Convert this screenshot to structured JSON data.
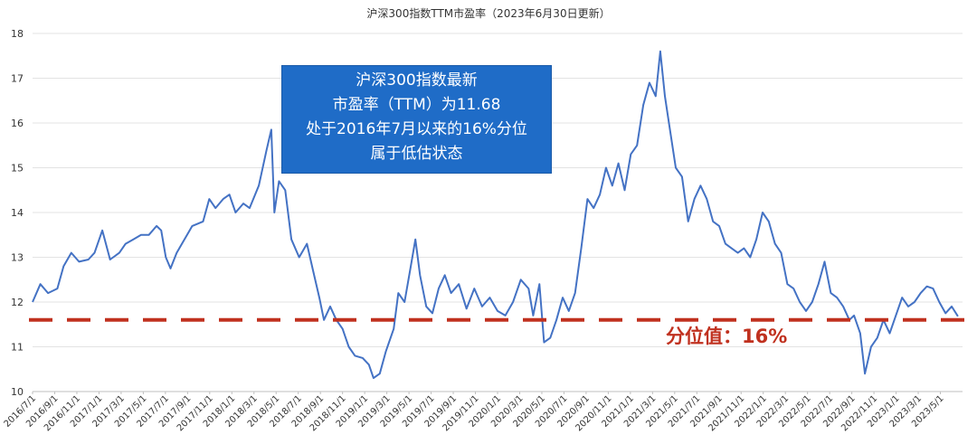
{
  "chart_data": {
    "type": "line",
    "title": "沪深300指数TTM市盈率（2023年6月30日更新）",
    "xlabel": "",
    "ylabel": "",
    "ylim": [
      10,
      18
    ],
    "yticks": [
      "10",
      "11",
      "12",
      "13",
      "14",
      "15",
      "16",
      "17",
      "18"
    ],
    "xtick_labels": [
      "2016/7/1",
      "2016/9/1",
      "2016/11/1",
      "2017/1/1",
      "2017/3/1",
      "2017/5/1",
      "2017/7/1",
      "2017/9/1",
      "2017/11/1",
      "2018/1/1",
      "2018/3/1",
      "2018/5/1",
      "2018/7/1",
      "2018/9/1",
      "2018/11/1",
      "2019/1/1",
      "2019/3/1",
      "2019/5/1",
      "2019/7/1",
      "2019/9/1",
      "2019/11/1",
      "2020/1/1",
      "2020/3/1",
      "2020/5/1",
      "2020/7/1",
      "2020/9/1",
      "2020/11/1",
      "2021/1/1",
      "2021/3/1",
      "2021/5/1",
      "2021/7/1",
      "2021/9/1",
      "2021/11/1",
      "2022/1/1",
      "2022/3/1",
      "2022/5/1",
      "2022/7/1",
      "2022/9/1",
      "2022/11/1",
      "2023/1/1",
      "2023/3/1",
      "2023/5/1"
    ],
    "grid": true,
    "series": [
      {
        "name": "",
        "color": "#4472c4",
        "points": [
          [
            0,
            12.0
          ],
          [
            0.5,
            12.4
          ],
          [
            1,
            12.2
          ],
          [
            1.6,
            12.3
          ],
          [
            2,
            12.8
          ],
          [
            2.5,
            13.1
          ],
          [
            3,
            12.9
          ],
          [
            3.6,
            12.95
          ],
          [
            4,
            13.1
          ],
          [
            4.5,
            13.6
          ],
          [
            5,
            12.95
          ],
          [
            5.6,
            13.1
          ],
          [
            6,
            13.3
          ],
          [
            6.5,
            13.4
          ],
          [
            7,
            13.5
          ],
          [
            7.5,
            13.5
          ],
          [
            8,
            13.7
          ],
          [
            8.3,
            13.6
          ],
          [
            8.6,
            13.0
          ],
          [
            8.9,
            12.75
          ],
          [
            9.3,
            13.1
          ],
          [
            9.8,
            13.4
          ],
          [
            10.3,
            13.7
          ],
          [
            11,
            13.8
          ],
          [
            11.4,
            14.3
          ],
          [
            11.8,
            14.1
          ],
          [
            12.3,
            14.3
          ],
          [
            12.7,
            14.4
          ],
          [
            13.1,
            14.0
          ],
          [
            13.6,
            14.2
          ],
          [
            14,
            14.1
          ],
          [
            14.6,
            14.6
          ],
          [
            15.1,
            15.4
          ],
          [
            15.4,
            15.85
          ],
          [
            15.6,
            14.0
          ],
          [
            15.9,
            14.7
          ],
          [
            16.3,
            14.5
          ],
          [
            16.7,
            13.4
          ],
          [
            17.2,
            13.0
          ],
          [
            17.7,
            13.3
          ],
          [
            18.1,
            12.7
          ],
          [
            18.5,
            12.1
          ],
          [
            18.8,
            11.6
          ],
          [
            19.2,
            11.9
          ],
          [
            19.6,
            11.6
          ],
          [
            20,
            11.4
          ],
          [
            20.4,
            11.0
          ],
          [
            20.8,
            10.8
          ],
          [
            21.3,
            10.75
          ],
          [
            21.7,
            10.6
          ],
          [
            22,
            10.3
          ],
          [
            22.4,
            10.4
          ],
          [
            22.8,
            10.9
          ],
          [
            23.3,
            11.4
          ],
          [
            23.6,
            12.2
          ],
          [
            24.0,
            12.0
          ],
          [
            24.4,
            12.8
          ],
          [
            24.7,
            13.4
          ],
          [
            25.0,
            12.6
          ],
          [
            25.4,
            11.9
          ],
          [
            25.8,
            11.75
          ],
          [
            26.2,
            12.3
          ],
          [
            26.6,
            12.6
          ],
          [
            27.0,
            12.2
          ],
          [
            27.5,
            12.4
          ],
          [
            28.0,
            11.85
          ],
          [
            28.5,
            12.3
          ],
          [
            29.0,
            11.9
          ],
          [
            29.5,
            12.1
          ],
          [
            30,
            11.8
          ],
          [
            30.5,
            11.7
          ],
          [
            31,
            12.0
          ],
          [
            31.5,
            12.5
          ],
          [
            32,
            12.3
          ],
          [
            32.3,
            11.7
          ],
          [
            32.7,
            12.4
          ],
          [
            33.0,
            11.1
          ],
          [
            33.4,
            11.2
          ],
          [
            33.8,
            11.6
          ],
          [
            34.2,
            12.1
          ],
          [
            34.6,
            11.8
          ],
          [
            35.0,
            12.2
          ],
          [
            35.4,
            13.2
          ],
          [
            35.8,
            14.3
          ],
          [
            36.2,
            14.1
          ],
          [
            36.6,
            14.4
          ],
          [
            37.0,
            15.0
          ],
          [
            37.4,
            14.6
          ],
          [
            37.8,
            15.1
          ],
          [
            38.2,
            14.5
          ],
          [
            38.6,
            15.3
          ],
          [
            39.0,
            15.5
          ],
          [
            39.4,
            16.4
          ],
          [
            39.8,
            16.9
          ],
          [
            40.2,
            16.6
          ],
          [
            40.5,
            17.6
          ],
          [
            40.8,
            16.6
          ],
          [
            41.1,
            15.9
          ],
          [
            41.5,
            15.0
          ],
          [
            41.9,
            14.8
          ],
          [
            42.3,
            13.8
          ],
          [
            42.7,
            14.3
          ],
          [
            43.1,
            14.6
          ],
          [
            43.5,
            14.3
          ],
          [
            43.9,
            13.8
          ],
          [
            44.3,
            13.7
          ],
          [
            44.7,
            13.3
          ],
          [
            45.1,
            13.2
          ],
          [
            45.5,
            13.1
          ],
          [
            45.9,
            13.2
          ],
          [
            46.3,
            13.0
          ],
          [
            46.7,
            13.4
          ],
          [
            47.1,
            14.0
          ],
          [
            47.5,
            13.8
          ],
          [
            47.9,
            13.3
          ],
          [
            48.3,
            13.1
          ],
          [
            48.7,
            12.4
          ],
          [
            49.1,
            12.3
          ],
          [
            49.5,
            12.0
          ],
          [
            49.9,
            11.8
          ],
          [
            50.3,
            12.0
          ],
          [
            50.7,
            12.4
          ],
          [
            51.1,
            12.9
          ],
          [
            51.5,
            12.2
          ],
          [
            51.9,
            12.1
          ],
          [
            52.3,
            11.9
          ],
          [
            52.7,
            11.6
          ],
          [
            53.0,
            11.7
          ],
          [
            53.4,
            11.3
          ],
          [
            53.7,
            10.4
          ],
          [
            54.1,
            11.0
          ],
          [
            54.5,
            11.2
          ],
          [
            54.9,
            11.6
          ],
          [
            55.3,
            11.3
          ],
          [
            55.7,
            11.7
          ],
          [
            56.1,
            12.1
          ],
          [
            56.5,
            11.9
          ],
          [
            56.9,
            12.0
          ],
          [
            57.3,
            12.2
          ],
          [
            57.7,
            12.35
          ],
          [
            58.1,
            12.3
          ],
          [
            58.5,
            12.0
          ],
          [
            58.9,
            11.75
          ],
          [
            59.3,
            11.9
          ],
          [
            59.7,
            11.68
          ]
        ]
      }
    ],
    "reference_line": {
      "value": 11.6,
      "color": "#c0311f",
      "style": "dashed"
    },
    "annotations": [
      {
        "lines": [
          "沪深300指数最新",
          "市盈率（TTM）为11.68",
          "处于2016年7月以来的16%分位",
          "属于低估状态"
        ],
        "bg_color": "#1f6cc7",
        "text_color": "#ffffff"
      },
      {
        "text": "分位值：16%",
        "color": "#c0311f"
      }
    ]
  }
}
